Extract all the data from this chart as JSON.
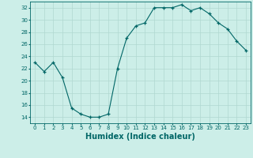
{
  "x": [
    0,
    1,
    2,
    3,
    4,
    5,
    6,
    7,
    8,
    9,
    10,
    11,
    12,
    13,
    14,
    15,
    16,
    17,
    18,
    19,
    20,
    21,
    22,
    23
  ],
  "y": [
    23,
    21.5,
    23,
    20.5,
    15.5,
    14.5,
    14,
    14,
    14.5,
    22,
    27,
    29,
    29.5,
    32,
    32,
    32,
    32.5,
    31.5,
    32,
    31,
    29.5,
    28.5,
    26.5,
    25
  ],
  "line_color": "#006666",
  "marker_color": "#006666",
  "bg_color": "#cceee8",
  "grid_color": "#b0d8d0",
  "xlabel": "Humidex (Indice chaleur)",
  "ylim": [
    13,
    33
  ],
  "xlim": [
    -0.5,
    23.5
  ],
  "yticks": [
    14,
    16,
    18,
    20,
    22,
    24,
    26,
    28,
    30,
    32
  ],
  "xticks": [
    0,
    1,
    2,
    3,
    4,
    5,
    6,
    7,
    8,
    9,
    10,
    11,
    12,
    13,
    14,
    15,
    16,
    17,
    18,
    19,
    20,
    21,
    22,
    23
  ],
  "label_fontsize": 7,
  "tick_fontsize": 5
}
